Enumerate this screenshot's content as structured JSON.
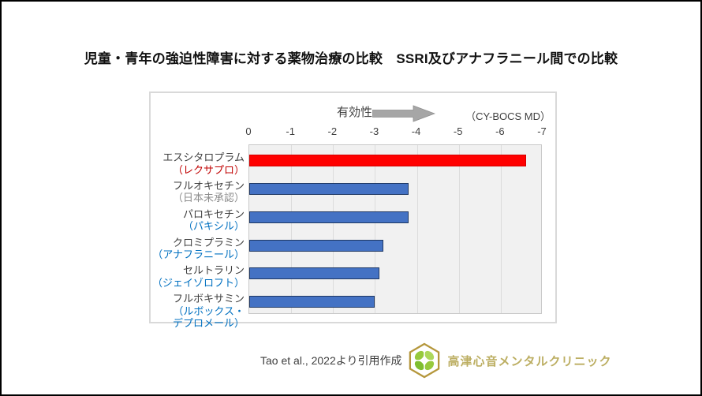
{
  "title": "児童・青年の強迫性障害に対する薬物治療の比較　SSRI及びアナフラニール間での比較",
  "chart_header": {
    "effectiveness_label": "有効性",
    "arrow_icon": "right-block-arrow",
    "unit_label": "（CY-BOCS MD）"
  },
  "chart_data": {
    "type": "bar",
    "orientation": "horizontal",
    "title": "児童・青年の強迫性障害に対する薬物治療の比較 SSRI及びアナフラニール間での比較",
    "xlabel": "有効性（CY-BOCS MD）",
    "x_axis": {
      "min": 0,
      "max": -7,
      "ticks": [
        "0",
        "-1",
        "-2",
        "-3",
        "-4",
        "-5",
        "-6",
        "-7"
      ]
    },
    "grid": true,
    "legend": false,
    "categories": [
      {
        "drug": "エスシタロプラム",
        "brand": "（レクサプロ）",
        "value": -6.6,
        "bar_color": "#ff0000",
        "bar_border": "#d40000",
        "brand_color": "#c00000"
      },
      {
        "drug": "フルオキセチン",
        "brand": "（日本未承認）",
        "value": -3.8,
        "bar_color": "#4472c4",
        "bar_border": "#1f3864",
        "brand_color": "#8c8c8c"
      },
      {
        "drug": "パロキセチン",
        "brand": "（パキシル）",
        "value": -3.8,
        "bar_color": "#4472c4",
        "bar_border": "#1f3864",
        "brand_color": "#0070c0"
      },
      {
        "drug": "クロミプラミン",
        "brand": "（アナフラニール）",
        "value": -3.2,
        "bar_color": "#4472c4",
        "bar_border": "#1f3864",
        "brand_color": "#0070c0"
      },
      {
        "drug": "セルトラリン",
        "brand": "（ジェイゾロフト）",
        "value": -3.1,
        "bar_color": "#4472c4",
        "bar_border": "#1f3864",
        "brand_color": "#0070c0"
      },
      {
        "drug": "フルボキサミン",
        "brand": "（ルボックス・\nデプロメール）",
        "value": -3.0,
        "bar_color": "#4472c4",
        "bar_border": "#1f3864",
        "brand_color": "#0070c0"
      }
    ]
  },
  "footer": {
    "citation": "Tao et al., 2022より引用作成",
    "logo_icon": "hexagon-clover-logo",
    "clinic_name": "高津心音メンタルクリニック"
  },
  "colors": {
    "accent_red": "#ff0000",
    "accent_blue": "#4472c4",
    "plot_background": "#f1f1f1",
    "arrow_gray": "#a6a6a6",
    "clinic_gold": "#bcae62"
  }
}
